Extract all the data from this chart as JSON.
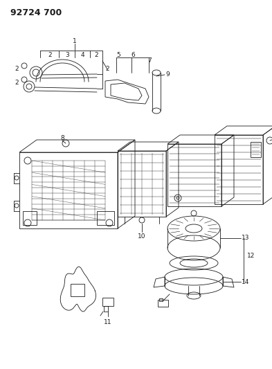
{
  "title": "92724 700",
  "bg_color": "#ffffff",
  "line_color": "#1a1a1a",
  "title_fontsize": 9,
  "label_fontsize": 6.5,
  "fig_width": 3.93,
  "fig_height": 5.33,
  "dpi": 100
}
